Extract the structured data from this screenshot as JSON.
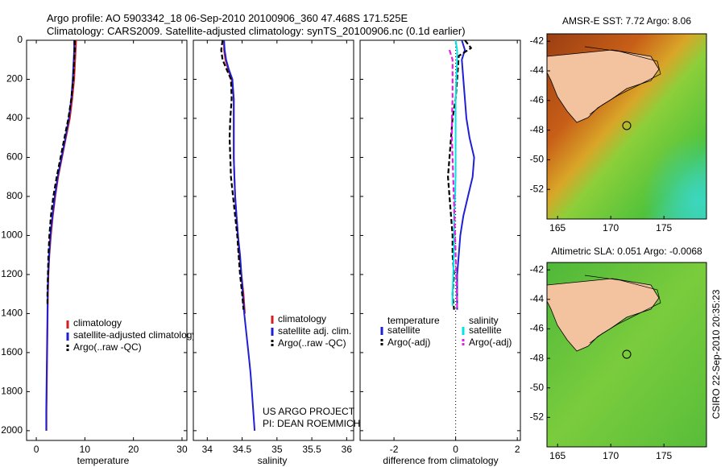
{
  "header": {
    "line1": "Argo profile: AO 5903342_18 06-Sep-2010 20100906_360 47.468S 171.525E",
    "line2": "Climatology: CARS2009. Satellite-adjusted climatology: synTS_20100906.nc (0.1d earlier)"
  },
  "colors": {
    "climatology": "#d22020",
    "satellite": "#1f1fd6",
    "argo": "#000000",
    "satellite_diff": "#00e6e6",
    "argo_diff": "#e020e0",
    "land": "#f2c39e"
  },
  "credits": {
    "project": "US ARGO PROJECT",
    "pi": "PI: DEAN ROEMMICH",
    "stamp": "CSIRO 22-Sep-2010 20:35:23"
  },
  "chart_data": [
    {
      "id": "temperature",
      "type": "line",
      "xlabel": "temperature",
      "xlim": [
        -2,
        31
      ],
      "xticks": [
        "0",
        "10",
        "20",
        "30"
      ],
      "xtick_values": [
        0,
        10,
        20,
        30
      ],
      "ylim": [
        2050,
        0
      ],
      "yticks": [
        "0",
        "200",
        "400",
        "600",
        "800",
        "1000",
        "1200",
        "1400",
        "1600",
        "1800",
        "2000"
      ],
      "ytick_values": [
        0,
        200,
        400,
        600,
        800,
        1000,
        1200,
        1400,
        1600,
        1800,
        2000
      ],
      "legend": [
        "climatology",
        "satellite-adjusted climatology",
        "Argo(..raw -QC)"
      ],
      "series": [
        {
          "name": "climatology",
          "color_key": "climatology",
          "dash": false,
          "points": [
            [
              8.2,
              0
            ],
            [
              8.1,
              50
            ],
            [
              8.0,
              100
            ],
            [
              7.8,
              200
            ],
            [
              7.4,
              300
            ],
            [
              6.9,
              400
            ],
            [
              6.1,
              500
            ],
            [
              5.3,
              600
            ],
            [
              4.5,
              700
            ],
            [
              3.9,
              800
            ],
            [
              3.4,
              900
            ],
            [
              3.0,
              1000
            ],
            [
              2.7,
              1100
            ],
            [
              2.5,
              1200
            ],
            [
              2.4,
              1300
            ],
            [
              2.35,
              1400
            ],
            [
              2.3,
              1500
            ],
            [
              2.25,
              1600
            ],
            [
              2.2,
              1700
            ],
            [
              2.15,
              1800
            ],
            [
              2.1,
              1900
            ],
            [
              2.1,
              2000
            ]
          ]
        },
        {
          "name": "satellite-adjusted climatology",
          "color_key": "satellite",
          "dash": false,
          "points": [
            [
              7.8,
              0
            ],
            [
              7.8,
              50
            ],
            [
              7.7,
              100
            ],
            [
              7.5,
              200
            ],
            [
              7.2,
              300
            ],
            [
              6.7,
              400
            ],
            [
              6.0,
              500
            ],
            [
              5.2,
              600
            ],
            [
              4.4,
              700
            ],
            [
              3.8,
              800
            ],
            [
              3.3,
              900
            ],
            [
              2.9,
              1000
            ],
            [
              2.65,
              1100
            ],
            [
              2.45,
              1200
            ],
            [
              2.35,
              1300
            ],
            [
              2.3,
              1400
            ],
            [
              2.25,
              1500
            ],
            [
              2.2,
              1600
            ],
            [
              2.15,
              1700
            ],
            [
              2.1,
              1800
            ],
            [
              2.05,
              1900
            ],
            [
              2.05,
              2000
            ]
          ]
        },
        {
          "name": "Argo(..raw -QC)",
          "color_key": "argo",
          "dash": true,
          "points": [
            [
              7.9,
              0
            ],
            [
              7.9,
              50
            ],
            [
              7.8,
              100
            ],
            [
              7.6,
              200
            ],
            [
              7.2,
              300
            ],
            [
              6.6,
              400
            ],
            [
              5.8,
              500
            ],
            [
              5.0,
              600
            ],
            [
              4.2,
              700
            ],
            [
              3.5,
              800
            ],
            [
              3.0,
              900
            ],
            [
              2.7,
              1000
            ],
            [
              2.5,
              1100
            ],
            [
              2.4,
              1200
            ],
            [
              2.3,
              1300
            ],
            [
              2.3,
              1360
            ]
          ]
        }
      ]
    },
    {
      "id": "salinity",
      "type": "line",
      "xlabel": "salinity",
      "xlim": [
        33.8,
        36.1
      ],
      "xticks": [
        "34",
        "34.5",
        "35",
        "35.5",
        "36"
      ],
      "xtick_values": [
        34,
        34.5,
        35,
        35.5,
        36
      ],
      "ylim": [
        2050,
        0
      ],
      "legend": [
        "climatology",
        "satellite adj. clim.",
        "Argo(..raw -QC)"
      ],
      "series": [
        {
          "name": "climatology",
          "color_key": "climatology",
          "dash": false,
          "points": [
            [
              34.24,
              0
            ],
            [
              34.24,
              50
            ],
            [
              34.26,
              100
            ],
            [
              34.3,
              150
            ],
            [
              34.35,
              200
            ],
            [
              34.38,
              300
            ],
            [
              34.38,
              400
            ],
            [
              34.38,
              500
            ],
            [
              34.38,
              600
            ],
            [
              34.39,
              700
            ],
            [
              34.4,
              800
            ],
            [
              34.42,
              900
            ],
            [
              34.44,
              1000
            ],
            [
              34.46,
              1100
            ],
            [
              34.49,
              1200
            ],
            [
              34.52,
              1300
            ],
            [
              34.54,
              1400
            ]
          ]
        },
        {
          "name": "satellite adj. clim.",
          "color_key": "satellite",
          "dash": false,
          "points": [
            [
              34.24,
              0
            ],
            [
              34.25,
              50
            ],
            [
              34.27,
              100
            ],
            [
              34.31,
              150
            ],
            [
              34.36,
              200
            ],
            [
              34.38,
              300
            ],
            [
              34.38,
              400
            ],
            [
              34.38,
              500
            ],
            [
              34.38,
              600
            ],
            [
              34.39,
              700
            ],
            [
              34.4,
              800
            ],
            [
              34.42,
              900
            ],
            [
              34.44,
              1000
            ],
            [
              34.47,
              1100
            ],
            [
              34.49,
              1200
            ],
            [
              34.51,
              1300
            ],
            [
              34.53,
              1400
            ],
            [
              34.56,
              1500
            ],
            [
              34.59,
              1600
            ],
            [
              34.62,
              1700
            ],
            [
              34.64,
              1800
            ],
            [
              34.66,
              1900
            ],
            [
              34.68,
              2000
            ]
          ]
        },
        {
          "name": "Argo(..raw -QC)",
          "color_key": "argo",
          "dash": true,
          "points": [
            [
              34.22,
              0
            ],
            [
              34.2,
              50
            ],
            [
              34.22,
              100
            ],
            [
              34.28,
              150
            ],
            [
              34.34,
              200
            ],
            [
              34.35,
              300
            ],
            [
              34.33,
              400
            ],
            [
              34.32,
              500
            ],
            [
              34.33,
              600
            ],
            [
              34.34,
              700
            ],
            [
              34.37,
              800
            ],
            [
              34.4,
              900
            ],
            [
              34.43,
              1000
            ],
            [
              34.45,
              1100
            ],
            [
              34.47,
              1200
            ],
            [
              34.5,
              1300
            ],
            [
              34.52,
              1380
            ]
          ]
        }
      ]
    },
    {
      "id": "difference",
      "type": "line",
      "xlabel": "difference from climatology",
      "xlim": [
        -3.1,
        2.1
      ],
      "xticks": [
        "-2",
        "0",
        "2"
      ],
      "xtick_values": [
        -2,
        0,
        2
      ],
      "ylim": [
        2050,
        0
      ],
      "zero_line": true,
      "legend_groups": [
        {
          "title": "temperature",
          "items": [
            "satellite",
            "Argo(-adj)"
          ]
        },
        {
          "title": "salinity",
          "items": [
            "satellite",
            "Argo(-adj)"
          ]
        }
      ],
      "series": [
        {
          "name": "temperature satellite",
          "color_key": "satellite",
          "dash": false,
          "points": [
            [
              0.2,
              0
            ],
            [
              0.3,
              50
            ],
            [
              0.2,
              100
            ],
            [
              0.25,
              200
            ],
            [
              0.3,
              300
            ],
            [
              0.35,
              400
            ],
            [
              0.45,
              500
            ],
            [
              0.6,
              600
            ],
            [
              0.55,
              700
            ],
            [
              0.4,
              800
            ],
            [
              0.25,
              900
            ],
            [
              0.15,
              1000
            ],
            [
              0.1,
              1100
            ],
            [
              0.05,
              1200
            ],
            [
              0.05,
              1300
            ],
            [
              0.05,
              1380
            ]
          ]
        },
        {
          "name": "temperature Argo(-adj)",
          "color_key": "argo",
          "dash": true,
          "points": [
            [
              0.3,
              0
            ],
            [
              0.5,
              40
            ],
            [
              0.1,
              80
            ],
            [
              0.05,
              200
            ],
            [
              0.0,
              300
            ],
            [
              -0.1,
              400
            ],
            [
              -0.15,
              500
            ],
            [
              -0.2,
              600
            ],
            [
              -0.25,
              700
            ],
            [
              -0.2,
              800
            ],
            [
              -0.15,
              900
            ],
            [
              -0.1,
              1000
            ],
            [
              -0.1,
              1100
            ],
            [
              -0.05,
              1200
            ],
            [
              -0.1,
              1300
            ],
            [
              -0.05,
              1380
            ]
          ]
        },
        {
          "name": "salinity satellite",
          "color_key": "satellite_diff",
          "dash": false,
          "points": [
            [
              0.0,
              0
            ],
            [
              0.05,
              50
            ],
            [
              0.05,
              100
            ],
            [
              0.02,
              200
            ],
            [
              0.0,
              300
            ],
            [
              0.0,
              400
            ],
            [
              0.0,
              500
            ],
            [
              0.0,
              600
            ],
            [
              0.0,
              700
            ],
            [
              -0.02,
              800
            ],
            [
              -0.05,
              900
            ],
            [
              -0.05,
              1000
            ],
            [
              -0.06,
              1100
            ],
            [
              -0.08,
              1200
            ],
            [
              -0.1,
              1300
            ],
            [
              -0.1,
              1360
            ]
          ]
        },
        {
          "name": "salinity Argo(-adj)",
          "color_key": "argo_diff",
          "dash": true,
          "points": [
            [
              -0.2,
              50
            ],
            [
              -0.1,
              100
            ],
            [
              -0.1,
              200
            ],
            [
              -0.1,
              300
            ],
            [
              -0.12,
              400
            ],
            [
              -0.12,
              500
            ],
            [
              -0.1,
              600
            ],
            [
              -0.08,
              700
            ],
            [
              -0.06,
              800
            ],
            [
              -0.04,
              900
            ],
            [
              -0.02,
              1000
            ],
            [
              0.0,
              1100
            ],
            [
              0.02,
              1200
            ],
            [
              0.04,
              1300
            ],
            [
              0.05,
              1380
            ]
          ]
        }
      ]
    },
    {
      "id": "sst_map",
      "type": "heatmap",
      "title": "AMSR-E SST: 7.72 Argo: 8.06",
      "xlim": [
        164,
        179
      ],
      "ylim": [
        -54,
        -41.5
      ],
      "xticks": [
        "165",
        "170",
        "175"
      ],
      "xtick_values": [
        165,
        170,
        175
      ],
      "yticks": [
        "-42",
        "-44",
        "-46",
        "-48",
        "-50",
        "-52"
      ],
      "ytick_values": [
        -42,
        -44,
        -46,
        -48,
        -50,
        -52
      ],
      "float_position": [
        171.525,
        -47.468
      ]
    },
    {
      "id": "sla_map",
      "type": "heatmap",
      "title": "Altimetric SLA: 0.051 Argo: -0.0068",
      "xlim": [
        164,
        179
      ],
      "ylim": [
        -54,
        -41.5
      ],
      "xticks": [
        "165",
        "170",
        "175"
      ],
      "xtick_values": [
        165,
        170,
        175
      ],
      "yticks": [
        "-42",
        "-44",
        "-46",
        "-48",
        "-50",
        "-52"
      ],
      "ytick_values": [
        -42,
        -44,
        -46,
        -48,
        -50,
        -52
      ],
      "float_position": [
        171.525,
        -47.468
      ]
    }
  ]
}
